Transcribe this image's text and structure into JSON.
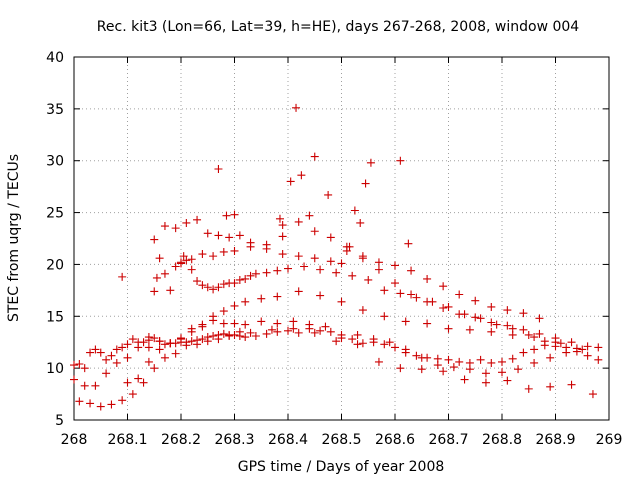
{
  "chart_data": {
    "type": "scatter",
    "title": "Rec. kit3 (Lon=66, Lat=39, h=HE), days 267-268, 2008, window 004",
    "xlabel": "GPS time / Days of year 2008",
    "ylabel": "STEC from uqrg / TECUs",
    "xlim": [
      268,
      269
    ],
    "ylim": [
      5,
      40
    ],
    "x_ticks": [
      268,
      268.1,
      268.2,
      268.3,
      268.4,
      268.5,
      268.6,
      268.7,
      268.8,
      268.9,
      269
    ],
    "x_tick_labels": [
      "268",
      "268.1",
      "268.2",
      "268.3",
      "268.4",
      "268.5",
      "268.6",
      "268.7",
      "268.8",
      "268.9",
      "269"
    ],
    "y_ticks": [
      5,
      10,
      15,
      20,
      25,
      30,
      35,
      40
    ],
    "y_tick_labels": [
      "5",
      "10",
      "15",
      "20",
      "25",
      "30",
      "35",
      "40"
    ],
    "grid": true,
    "marker": "plus",
    "color": "#cc0000",
    "series": [
      {
        "name": "",
        "x": [
          268.0,
          268.01,
          268.02,
          268.03,
          268.04,
          268.05,
          268.06,
          268.07,
          268.08,
          268.09,
          268.1,
          268.11,
          268.12,
          268.13,
          268.14,
          268.15,
          268.16,
          268.17,
          268.18,
          268.19,
          268.2,
          268.21,
          268.22,
          268.23,
          268.24,
          268.25,
          268.26,
          268.27,
          268.28,
          268.29,
          268.3,
          268.31,
          268.32,
          268.34,
          268.36,
          268.38,
          268.4,
          268.42,
          268.44,
          268.46,
          268.48,
          268.5,
          268.52,
          268.54,
          268.56,
          268.58,
          268.6,
          268.62,
          268.64,
          268.66,
          268.68,
          268.7,
          268.72,
          268.74,
          268.76,
          268.78,
          268.8,
          268.82,
          268.84,
          268.86,
          268.88,
          268.9,
          268.92,
          268.94,
          268.96,
          268.98,
          268.0,
          268.02,
          268.04,
          268.06,
          268.08,
          268.1,
          268.12,
          268.14,
          268.16,
          268.18,
          268.2,
          268.22,
          268.24,
          268.26,
          268.28,
          268.3,
          268.32,
          268.35,
          268.38,
          268.41,
          268.44,
          268.47,
          268.5,
          268.53,
          268.56,
          268.59,
          268.62,
          268.65,
          268.68,
          268.71,
          268.74,
          268.77,
          268.8,
          268.83,
          268.86,
          268.89,
          268.92,
          268.95,
          268.98,
          268.01,
          268.03,
          268.05,
          268.07,
          268.09,
          268.11,
          268.13,
          268.15,
          268.17,
          268.19,
          268.21,
          268.23,
          268.25,
          268.27,
          268.29,
          268.31,
          268.33,
          268.37,
          268.41,
          268.45,
          268.49,
          268.53,
          268.57,
          268.61,
          268.65,
          268.69,
          268.73,
          268.77,
          268.81,
          268.85,
          268.89,
          268.93,
          268.97,
          268.1,
          268.12,
          268.14,
          268.16,
          268.18,
          268.2,
          268.22,
          268.24,
          268.26,
          268.28,
          268.3,
          268.32,
          268.35,
          268.38,
          268.42,
          268.46,
          268.5,
          268.54,
          268.58,
          268.62,
          268.66,
          268.7,
          268.74,
          268.78,
          268.82,
          268.86,
          268.9,
          268.94,
          268.14,
          268.15,
          268.16,
          268.17,
          268.18,
          268.19,
          268.2,
          268.21,
          268.22,
          268.23,
          268.24,
          268.25,
          268.26,
          268.27,
          268.28,
          268.29,
          268.3,
          268.31,
          268.32,
          268.33,
          268.34,
          268.36,
          268.38,
          268.4,
          268.43,
          268.46,
          268.49,
          268.52,
          268.55,
          268.58,
          268.61,
          268.64,
          268.67,
          268.7,
          268.73,
          268.76,
          268.79,
          268.82,
          268.85,
          268.88,
          268.91,
          268.15,
          268.17,
          268.19,
          268.21,
          268.23,
          268.25,
          268.27,
          268.29,
          268.31,
          268.33,
          268.36,
          268.39,
          268.42,
          268.45,
          268.48,
          268.51,
          268.54,
          268.57,
          268.6,
          268.63,
          268.66,
          268.69,
          268.72,
          268.75,
          268.78,
          268.81,
          268.84,
          268.87,
          268.2,
          268.22,
          268.24,
          268.26,
          268.28,
          268.3,
          268.33,
          268.36,
          268.39,
          268.42,
          268.45,
          268.48,
          268.51,
          268.54,
          268.57,
          268.6,
          268.63,
          268.66,
          268.69,
          268.72,
          268.75,
          268.78,
          268.81,
          268.84,
          268.87,
          268.9,
          268.93,
          268.96,
          268.09,
          268.155,
          268.205,
          268.27,
          268.285,
          268.3,
          268.385,
          268.39,
          268.405,
          268.415,
          268.425,
          268.44,
          268.45,
          268.475,
          268.5,
          268.515,
          268.525,
          268.535,
          268.545,
          268.555,
          268.61,
          268.625
        ],
        "y": [
          10.3,
          10.4,
          10.0,
          11.5,
          11.8,
          11.5,
          10.8,
          11.2,
          11.8,
          12.0,
          12.3,
          12.8,
          12.5,
          12.5,
          12.7,
          12.9,
          12.6,
          12.3,
          12.4,
          12.4,
          12.5,
          12.5,
          12.6,
          12.7,
          12.8,
          13.0,
          13.1,
          13.2,
          13.3,
          13.1,
          13.2,
          13.1,
          13.0,
          13.1,
          13.3,
          13.5,
          13.6,
          13.4,
          13.8,
          13.6,
          13.5,
          12.9,
          12.8,
          12.4,
          12.5,
          12.3,
          12.0,
          11.5,
          11.2,
          11.0,
          10.9,
          10.8,
          10.6,
          10.5,
          10.8,
          10.5,
          10.6,
          10.9,
          11.5,
          11.8,
          12.2,
          12.1,
          12.0,
          11.6,
          11.2,
          10.8,
          8.9,
          8.3,
          8.3,
          9.5,
          10.5,
          11.0,
          12.0,
          13.0,
          12.6,
          12.4,
          12.8,
          13.8,
          14.0,
          14.6,
          14.3,
          14.3,
          14.2,
          14.5,
          14.3,
          14.5,
          14.2,
          14.0,
          13.2,
          13.2,
          12.8,
          12.5,
          11.8,
          11.0,
          10.3,
          10.1,
          9.9,
          9.5,
          9.6,
          9.9,
          10.5,
          11.0,
          11.5,
          11.8,
          12.0,
          6.8,
          6.6,
          6.3,
          6.5,
          6.9,
          7.5,
          8.6,
          10.0,
          11.0,
          11.4,
          12.2,
          12.3,
          12.6,
          12.8,
          13.2,
          13.5,
          13.4,
          13.7,
          13.8,
          13.4,
          12.6,
          12.3,
          10.6,
          10.0,
          9.9,
          9.7,
          8.9,
          8.6,
          8.8,
          8.0,
          8.2,
          8.4,
          7.5,
          8.6,
          9.0,
          10.6,
          11.8,
          12.4,
          12.9,
          13.5,
          14.2,
          15.0,
          15.5,
          16.0,
          16.4,
          16.7,
          16.9,
          17.4,
          17.0,
          16.4,
          15.6,
          15.0,
          14.5,
          14.3,
          13.8,
          13.7,
          13.5,
          13.2,
          13.0,
          12.5,
          11.9,
          12.0,
          17.4,
          20.6,
          19.1,
          17.5,
          19.8,
          20.1,
          20.4,
          19.5,
          18.4,
          18.0,
          17.8,
          17.6,
          17.8,
          18.1,
          18.2,
          18.2,
          18.5,
          18.6,
          18.9,
          19.1,
          19.2,
          19.4,
          19.6,
          19.8,
          19.5,
          19.2,
          18.9,
          18.5,
          17.5,
          17.2,
          16.8,
          16.4,
          15.9,
          15.2,
          14.8,
          14.2,
          13.8,
          13.2,
          12.6,
          12.4,
          22.4,
          23.7,
          23.5,
          24.0,
          24.3,
          23.0,
          22.8,
          22.6,
          22.8,
          22.1,
          21.9,
          22.7,
          24.1,
          23.2,
          22.6,
          21.3,
          20.8,
          20.2,
          19.9,
          19.4,
          18.6,
          17.9,
          17.1,
          16.5,
          15.9,
          15.6,
          15.3,
          14.8,
          20.2,
          20.5,
          21.0,
          20.8,
          21.2,
          21.3,
          21.7,
          21.5,
          21.0,
          20.8,
          20.6,
          20.3,
          21.7,
          20.6,
          19.5,
          18.2,
          17.1,
          16.4,
          15.8,
          15.2,
          14.9,
          14.4,
          14.1,
          13.7,
          13.3,
          12.9,
          12.5,
          12.1,
          18.8,
          18.7,
          20.8,
          29.2,
          24.7,
          24.8,
          24.4,
          23.8,
          28.0,
          35.1,
          28.6,
          24.7,
          30.4,
          26.7,
          20.1,
          21.7,
          25.2,
          24.0,
          27.8,
          29.8,
          30.0,
          22.0
        ]
      }
    ]
  }
}
